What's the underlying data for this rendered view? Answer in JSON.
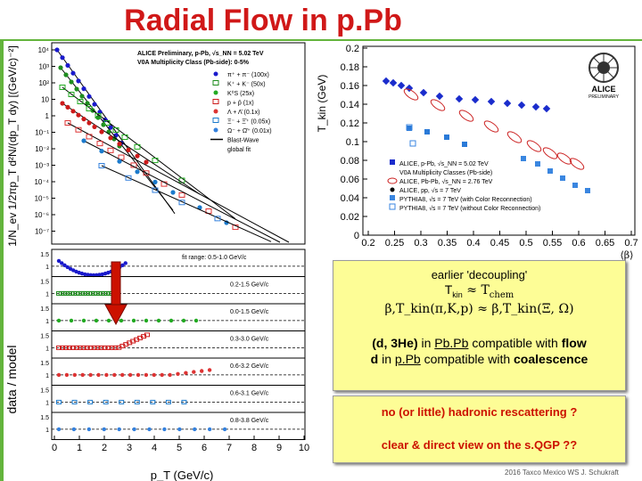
{
  "title": "Radial Flow in p.Pb",
  "left_plot": {
    "y_label_top": "1/N_ev 1/2πp_T d²N/(dp_T dy) [(GeV/c)⁻²]",
    "y_label_bottom": "data / model",
    "x_label": "p_T (GeV/c)",
    "header_line1": "ALICE Preliminary, p-Pb, √s_NN = 5.02 TeV",
    "header_line2": "V0A Multiplicity Class (Pb-side): 0-5%",
    "y_ticks_top": [
      "10⁴",
      "10³",
      "10²",
      "10",
      "1",
      "10⁻¹",
      "10⁻²",
      "10⁻³",
      "10⁻⁴",
      "10⁻⁵",
      "10⁻⁶",
      "10⁻⁷"
    ],
    "x_ticks": [
      "0",
      "1",
      "2",
      "3",
      "4",
      "5",
      "6",
      "7",
      "8",
      "9",
      "10"
    ],
    "ratio_tick_labels": [
      "1.5",
      "1",
      "1.5",
      "1",
      "1.5",
      "1",
      "1.5",
      "1",
      "1.5",
      "1",
      "1.5",
      "1",
      "1.5",
      "1"
    ],
    "legend": [
      {
        "label": "π⁺ + π⁻ (100x)",
        "color": "#1a1acc"
      },
      {
        "label": "K⁺ + K⁻ (50x)",
        "color": "#1e8c1e"
      },
      {
        "label": "K⁰S (25x)",
        "color": "#22aa22"
      },
      {
        "label": "p + p̄ (1x)",
        "color": "#cc1a1a"
      },
      {
        "label": "Λ + Λ̄ (0.1x)",
        "color": "#dd3333"
      },
      {
        "label": "Ξ⁻ + Ξ̄⁺ (0.05x)",
        "color": "#1b7acc"
      },
      {
        "label": "Ω⁻ + Ω̄⁺ (0.01x)",
        "color": "#3380dd"
      },
      {
        "label": "Blast-Wave",
        "color": "#000000"
      },
      {
        "label": "global fit",
        "color": "#000000"
      }
    ],
    "fit_ranges": [
      "fit range: 0.5-1.0 GeV/c",
      "0.2-1.5 GeV/c",
      "0.0-1.5 GeV/c",
      "0.3-3.0 GeV/c",
      "0.6-3.2 GeV/c",
      "0.6-3.1 GeV/c",
      "0.8-3.8 GeV/c"
    ]
  },
  "right_plot": {
    "y_label": "T_kin (GeV)",
    "x_label": "⟨β⟩",
    "y_ticks": [
      "0.2",
      "0.18",
      "0.16",
      "0.14",
      "0.12",
      "0.1",
      "0.08",
      "0.06",
      "0.04",
      "0.02",
      "0"
    ],
    "x_ticks": [
      "0.2",
      "0.25",
      "0.3",
      "0.35",
      "0.4",
      "0.45",
      "0.5",
      "0.55",
      "0.6",
      "0.65",
      "0.7"
    ],
    "logo_text": "ALICE",
    "logo_sub": "PRELIMINARY",
    "legend": [
      "ALICE, p-Pb, √s_NN = 5.02 TeV",
      "V0A Multiplicity Classes (Pb-side)",
      "ALICE, Pb-Pb, √s_NN = 2.76 TeV",
      "ALICE, pp, √s = 7 TeV",
      "PYTHIA8, √s = 7 TeV (with Color Reconnection)",
      "PYTHIA8, √s = 7 TeV (without Color Reconnection)"
    ]
  },
  "notes": {
    "box1_line1": "earlier 'decoupling'",
    "box1_line2_a": "T",
    "box1_line2_sub": "kin",
    "box1_line2_b": " ≈ ",
    "box1_line2_c": "T",
    "box1_line2_sub2": "chem",
    "box1_line3": "β,T_kin(π,K,p) ≈ β,T_kin(Ξ, Ω)",
    "box1_line4_a": "(d, 3He)",
    "box1_line4_b": " in ",
    "box1_line4_c": "Pb.Pb",
    "box1_line4_d": " compatible with ",
    "box1_line4_e": "flow",
    "box1_line5_a": "d",
    "box1_line5_b": " in ",
    "box1_line5_c": "p.Pb",
    "box1_line5_d": " compatible with ",
    "box1_line5_e": "coalescence",
    "box2_line1": "no (or little) hadronic rescattering ?",
    "box2_line2": "clear & direct view on the s.QGP ??"
  },
  "footer": "2016 Taxco Mexico WS J. Schukraft",
  "colors": {
    "title": "#d01818",
    "accent": "#63b43c",
    "note_bg": "#fdfd96",
    "highlight": "#cc1100"
  }
}
